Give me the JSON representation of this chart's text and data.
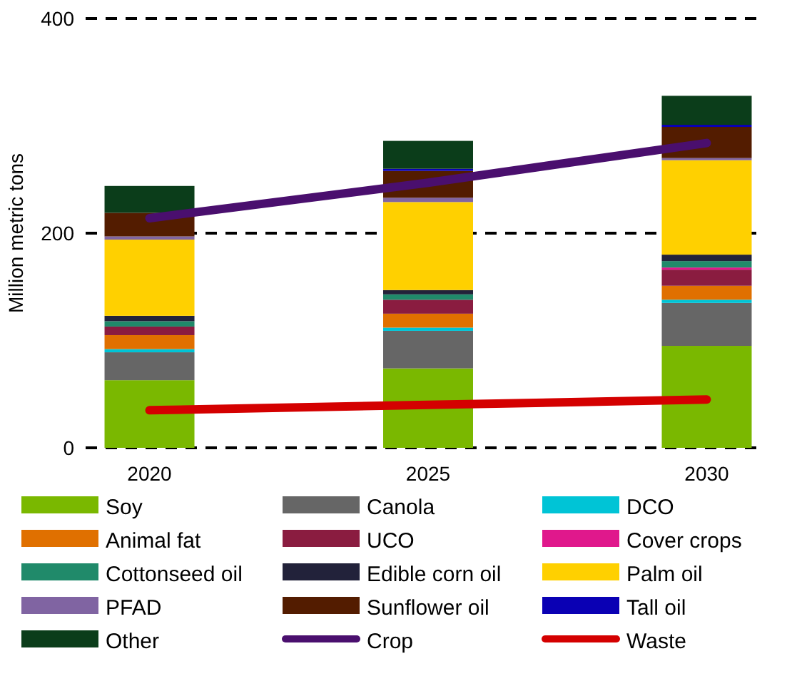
{
  "chart_data": {
    "type": "bar",
    "stacked": true,
    "ylabel": "Million metric tons",
    "categories": [
      "2020",
      "2025",
      "2030"
    ],
    "ylim": [
      0,
      400
    ],
    "yticks": [
      0,
      200,
      400
    ],
    "grid": "y",
    "legend": "bottom",
    "series": [
      {
        "name": "Soy",
        "color": "#7ab800",
        "values": [
          63,
          74,
          95
        ]
      },
      {
        "name": "Canola",
        "color": "#666666",
        "values": [
          26,
          35,
          40
        ]
      },
      {
        "name": "DCO",
        "color": "#00c4d6",
        "values": [
          3,
          3,
          3
        ]
      },
      {
        "name": "Animal fat",
        "color": "#e07000",
        "values": [
          13,
          13,
          13
        ]
      },
      {
        "name": "UCO",
        "color": "#8a1c40",
        "values": [
          8,
          13,
          15
        ]
      },
      {
        "name": "Cover crops",
        "color": "#e0188c",
        "values": [
          0,
          0,
          2
        ]
      },
      {
        "name": "Cottonseed oil",
        "color": "#208a6a",
        "values": [
          5,
          5,
          6
        ]
      },
      {
        "name": "Edible corn oil",
        "color": "#22223a",
        "values": [
          5,
          4,
          6
        ]
      },
      {
        "name": "Palm oil",
        "color": "#ffd000",
        "values": [
          71,
          82,
          88
        ]
      },
      {
        "name": "PFAD",
        "color": "#8064a2",
        "values": [
          3,
          4,
          2
        ]
      },
      {
        "name": "Sunflower oil",
        "color": "#531c00",
        "values": [
          22,
          25,
          29
        ]
      },
      {
        "name": "Tall oil",
        "color": "#0a00b4",
        "values": [
          0,
          2,
          2
        ]
      },
      {
        "name": "Other",
        "color": "#0b3d1a",
        "values": [
          25,
          26,
          27
        ]
      },
      {
        "name": "Crop",
        "type": "line",
        "color": "#4a0f6e",
        "values": [
          214,
          247,
          284
        ]
      },
      {
        "name": "Waste",
        "type": "line",
        "color": "#d40000",
        "values": [
          35,
          40,
          45
        ]
      }
    ]
  }
}
